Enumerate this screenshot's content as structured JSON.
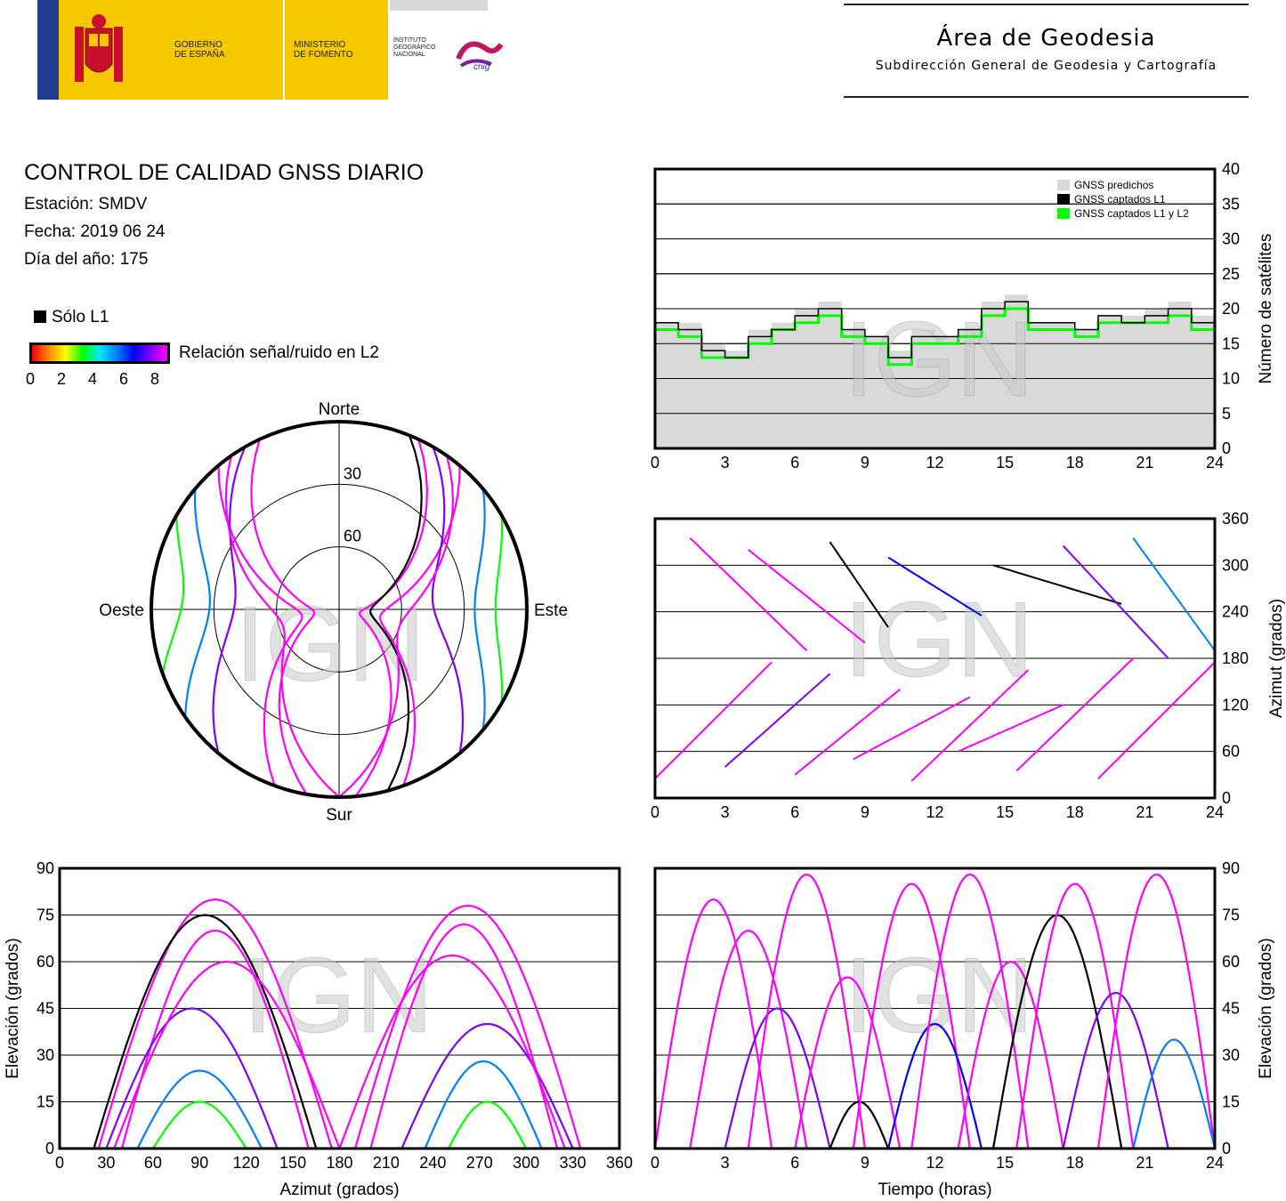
{
  "header": {
    "gov_lines": [
      "GOBIERNO",
      "DE ESPAÑA"
    ],
    "ministry_lines": [
      "MINISTERIO",
      "DE FOMENTO"
    ],
    "institute_lines": [
      "INSTITUTO",
      "GEOGRÁFICO",
      "NACIONAL"
    ],
    "cnig_text": "cnig",
    "area_title": "Área de Geodesia",
    "area_subtitle": "Subdirección General de Geodesia y Cartografía"
  },
  "report": {
    "title": "CONTROL DE CALIDAD GNSS DIARIO",
    "station": "Estación: SMDV",
    "date": "Fecha: 2019 06 24",
    "doy": "Día del año: 175"
  },
  "legend": {
    "l1_only": "Sólo L1",
    "snr_label": "Relación señal/ruido en L2",
    "snr_ticks": [
      "0",
      "2",
      "4",
      "6",
      "8"
    ]
  },
  "watermark": "IGN",
  "colors": {
    "l1_only": "#000000",
    "predicted": "#d9d9d9",
    "captured_l1_l2": "#00ff00",
    "high_snr": "#ff00ff",
    "grid": "#000000"
  },
  "chart_data": [
    {
      "id": "skyplot",
      "type": "scatter",
      "title": "",
      "direction_labels": {
        "north": "Norte",
        "south": "Sur",
        "east": "Este",
        "west": "Oeste"
      },
      "elevation_rings": [
        "30",
        "60"
      ],
      "tracks": [
        {
          "rise_az": 25,
          "set_az": 175,
          "max_el": 80,
          "snr": 9
        },
        {
          "rise_az": 335,
          "set_az": 190,
          "max_el": 78,
          "snr": 9
        },
        {
          "rise_az": 40,
          "set_az": 160,
          "max_el": 70,
          "snr": 9
        },
        {
          "rise_az": 320,
          "set_az": 200,
          "max_el": 72,
          "snr": 9
        },
        {
          "rise_az": 30,
          "set_az": 140,
          "max_el": 45,
          "snr": 7
        },
        {
          "rise_az": 330,
          "set_az": 220,
          "max_el": 40,
          "snr": 7
        },
        {
          "rise_az": 50,
          "set_az": 130,
          "max_el": 25,
          "snr": 5
        },
        {
          "rise_az": 310,
          "set_az": 235,
          "max_el": 28,
          "snr": 5
        },
        {
          "rise_az": 22,
          "set_az": 165,
          "max_el": 75,
          "snr": 0,
          "l1_only": true
        },
        {
          "rise_az": 60,
          "set_az": 120,
          "max_el": 15,
          "snr": 3
        },
        {
          "rise_az": 300,
          "set_az": 250,
          "max_el": 15,
          "snr": 3
        },
        {
          "rise_az": 35,
          "set_az": 180,
          "max_el": 60,
          "snr": 8
        },
        {
          "rise_az": 325,
          "set_az": 180,
          "max_el": 62,
          "snr": 8
        }
      ]
    },
    {
      "id": "satellite-count",
      "type": "line",
      "title": "",
      "xlabel": "",
      "ylabel": "Número de satélites",
      "xlim": [
        0,
        24
      ],
      "ylim": [
        0,
        40
      ],
      "xticks": [
        0,
        3,
        6,
        9,
        12,
        15,
        18,
        21,
        24
      ],
      "yticks": [
        0,
        5,
        10,
        15,
        20,
        25,
        30,
        35,
        40
      ],
      "grid": true,
      "legend_position": "top-right",
      "series": [
        {
          "name": "GNSS predichos",
          "x": [
            0,
            1,
            2,
            3,
            4,
            5,
            6,
            7,
            8,
            9,
            10,
            11,
            12,
            13,
            14,
            15,
            16,
            17,
            18,
            19,
            20,
            21,
            22,
            23,
            24
          ],
          "values": [
            18,
            18,
            15,
            14,
            17,
            18,
            20,
            21,
            17,
            16,
            14,
            17,
            16,
            17,
            21,
            22,
            18,
            18,
            17,
            19,
            19,
            20,
            21,
            19,
            17
          ]
        },
        {
          "name": "GNSS captados L1",
          "x": [
            0,
            1,
            2,
            3,
            4,
            5,
            6,
            7,
            8,
            9,
            10,
            11,
            12,
            13,
            14,
            15,
            16,
            17,
            18,
            19,
            20,
            21,
            22,
            23,
            24
          ],
          "values": [
            18,
            17,
            14,
            13,
            16,
            17,
            19,
            20,
            17,
            16,
            13,
            16,
            16,
            17,
            20,
            21,
            18,
            18,
            17,
            19,
            18,
            19,
            20,
            18,
            17
          ]
        },
        {
          "name": "GNSS captados L1 y L2",
          "x": [
            0,
            1,
            2,
            3,
            4,
            5,
            6,
            7,
            8,
            9,
            10,
            11,
            12,
            13,
            14,
            15,
            16,
            17,
            18,
            19,
            20,
            21,
            22,
            23,
            24
          ],
          "values": [
            17,
            16,
            13,
            13,
            15,
            17,
            18,
            19,
            16,
            15,
            12,
            15,
            15,
            16,
            19,
            20,
            17,
            17,
            16,
            18,
            18,
            18,
            19,
            17,
            16
          ]
        }
      ]
    },
    {
      "id": "azimuth-time",
      "type": "scatter",
      "title": "",
      "xlabel": "",
      "ylabel": "Azimut (grados)",
      "xlim": [
        0,
        24
      ],
      "ylim": [
        0,
        360
      ],
      "xticks": [
        0,
        3,
        6,
        9,
        12,
        15,
        18,
        21,
        24
      ],
      "yticks": [
        0,
        60,
        120,
        180,
        240,
        300,
        360
      ],
      "grid": true
    },
    {
      "id": "elevation-azimuth",
      "type": "scatter",
      "title": "",
      "xlabel": "Azimut (grados)",
      "ylabel": "Elevación (grados)",
      "xlim": [
        0,
        360
      ],
      "ylim": [
        0,
        90
      ],
      "xticks": [
        0,
        30,
        60,
        90,
        120,
        150,
        180,
        210,
        240,
        270,
        300,
        330,
        360
      ],
      "yticks": [
        0,
        15,
        30,
        45,
        60,
        75,
        90
      ],
      "grid": true
    },
    {
      "id": "elevation-time",
      "type": "scatter",
      "title": "",
      "xlabel": "Tiempo (horas)",
      "ylabel": "Elevación (grados)",
      "xlim": [
        0,
        24
      ],
      "ylim": [
        0,
        90
      ],
      "xticks": [
        0,
        3,
        6,
        9,
        12,
        15,
        18,
        21,
        24
      ],
      "yticks": [
        0,
        15,
        30,
        45,
        60,
        75,
        90
      ],
      "grid": true,
      "passes": [
        {
          "start": 0.0,
          "end": 5.0,
          "max_el": 80,
          "snr": 9
        },
        {
          "start": 1.5,
          "end": 6.5,
          "max_el": 70,
          "snr": 9
        },
        {
          "start": 3.0,
          "end": 7.5,
          "max_el": 45,
          "snr": 7
        },
        {
          "start": 4.0,
          "end": 9.0,
          "max_el": 88,
          "snr": 9
        },
        {
          "start": 6.0,
          "end": 10.5,
          "max_el": 55,
          "snr": 8
        },
        {
          "start": 7.5,
          "end": 10.0,
          "max_el": 15,
          "snr": 0,
          "l1_only": true
        },
        {
          "start": 8.5,
          "end": 13.5,
          "max_el": 85,
          "snr": 9
        },
        {
          "start": 10.0,
          "end": 14.0,
          "max_el": 40,
          "snr": 6
        },
        {
          "start": 11.0,
          "end": 16.0,
          "max_el": 88,
          "snr": 9
        },
        {
          "start": 13.0,
          "end": 17.5,
          "max_el": 60,
          "snr": 8
        },
        {
          "start": 14.5,
          "end": 20.0,
          "max_el": 75,
          "snr": 0,
          "l1_only": true
        },
        {
          "start": 15.5,
          "end": 20.5,
          "max_el": 85,
          "snr": 9
        },
        {
          "start": 17.5,
          "end": 22.0,
          "max_el": 50,
          "snr": 7
        },
        {
          "start": 19.0,
          "end": 24.0,
          "max_el": 88,
          "snr": 9
        },
        {
          "start": 20.5,
          "end": 24.0,
          "max_el": 35,
          "snr": 5
        }
      ]
    }
  ]
}
